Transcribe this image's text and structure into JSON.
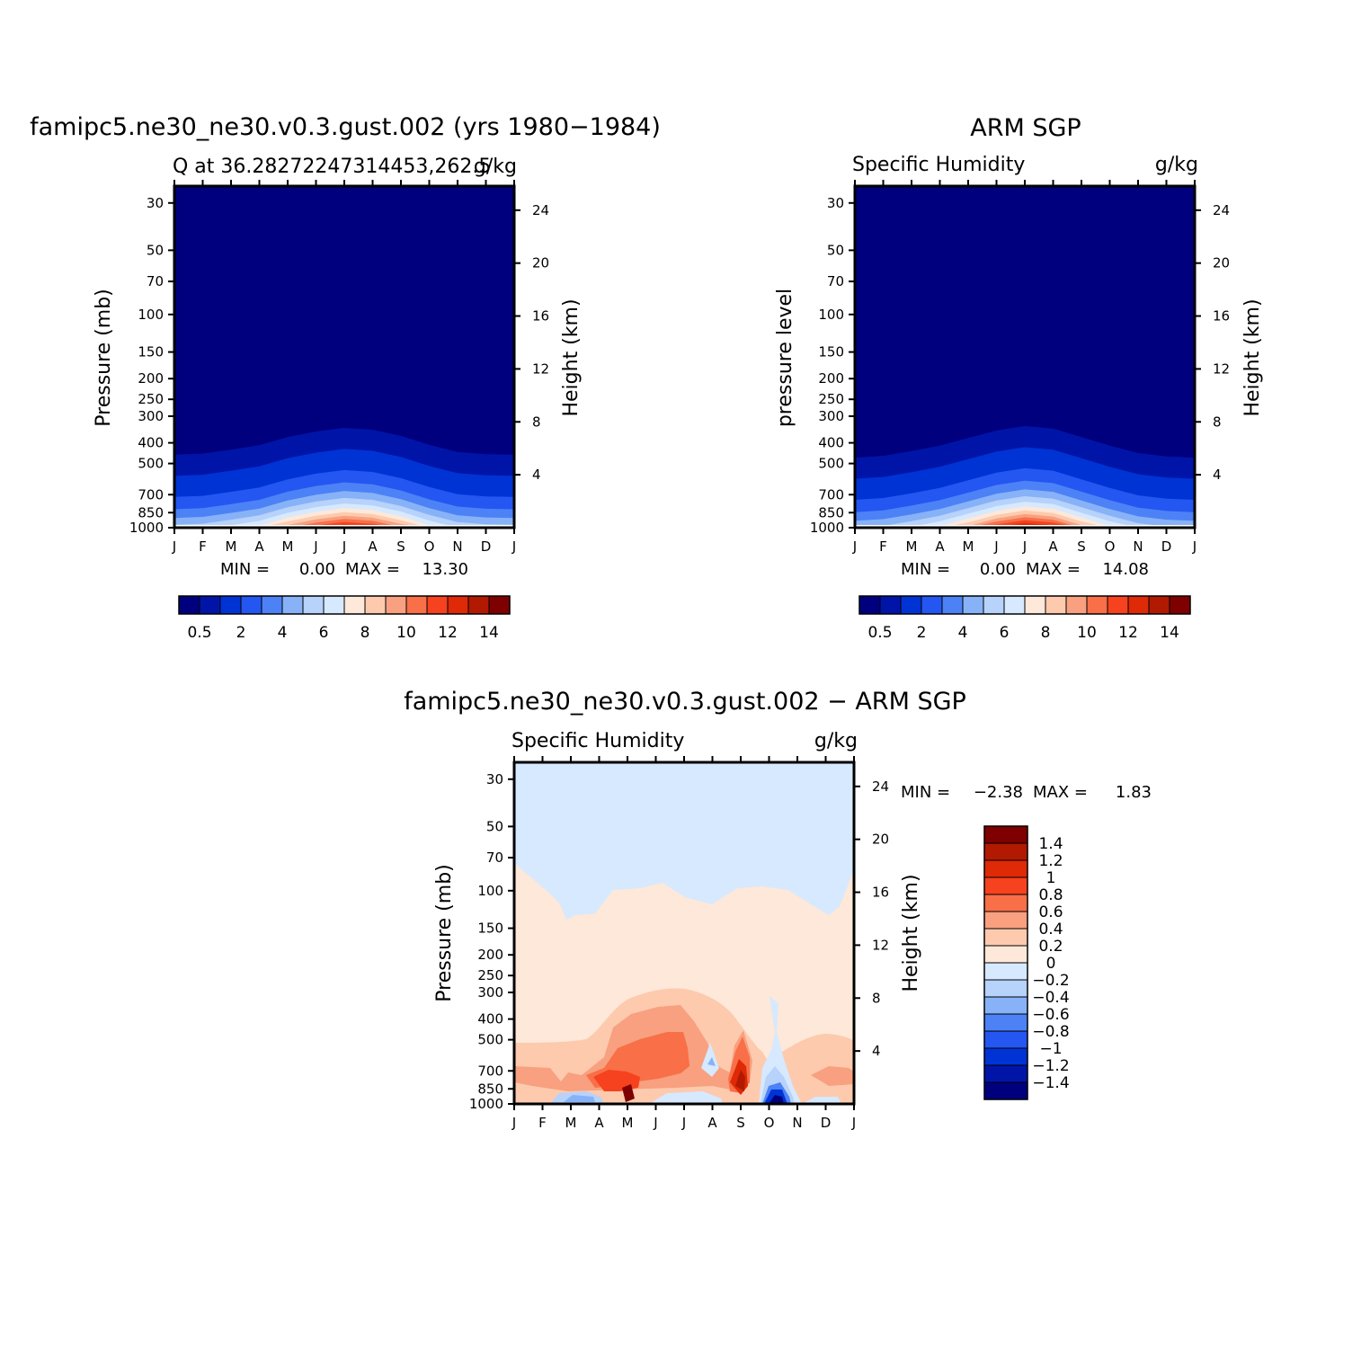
{
  "colors": {
    "levels": [
      "#00007f",
      "#0015a8",
      "#0033d4",
      "#2456f2",
      "#4c82f6",
      "#88b2f7",
      "#b7d2fb",
      "#d6e9fe",
      "#fde8d9",
      "#fdcaae",
      "#f8a07f",
      "#f86f48",
      "#f6421e",
      "#de2a06",
      "#b11a00",
      "#7f0000"
    ],
    "diff": [
      "#00007f",
      "#0015a8",
      "#0033d4",
      "#2456f2",
      "#4c82f6",
      "#88b2f7",
      "#b7d2fb",
      "#d6e9fe",
      "#fde8d9",
      "#fdcaae",
      "#f8a07f",
      "#f86f48",
      "#f6421e",
      "#de2a06",
      "#b11a00",
      "#7f0000"
    ]
  },
  "chart_data": [
    {
      "type": "heatmap",
      "title": "famipc5.ne30_ne30.v0.3.gust.002 (yrs 1980−1984)",
      "subtitle_left": "Q at 36.28272247314453,262.5",
      "subtitle_right": "g/kg",
      "ylabel": "Pressure (mb)",
      "ylabel_right": "Height (km)",
      "x_ticks": [
        "J",
        "F",
        "M",
        "A",
        "M",
        "J",
        "J",
        "A",
        "S",
        "O",
        "N",
        "D",
        "J"
      ],
      "y_ticks": [
        "30",
        "50",
        "70",
        "100",
        "150",
        "200",
        "250",
        "300",
        "400",
        "500",
        "700",
        "850",
        "1000"
      ],
      "y_ticks_right": [
        "24",
        "20",
        "16",
        "12",
        "8",
        "4"
      ],
      "min_label": "MIN =",
      "min_value": "0.00",
      "max_label": "MAX =",
      "max_value": "13.30",
      "colorbar_ticks": [
        "0.5",
        "2",
        "4",
        "6",
        "8",
        "10",
        "12",
        "14"
      ],
      "levels": [
        0.5,
        1,
        2,
        3,
        4,
        5,
        6,
        7,
        8,
        9,
        10,
        11,
        12,
        13,
        14
      ],
      "profile_max_by_month": [
        5.5,
        5.7,
        6.5,
        7.5,
        9.8,
        11.8,
        13.3,
        12.5,
        10.2,
        7.6,
        6.0,
        5.6,
        5.5
      ]
    },
    {
      "type": "heatmap",
      "title": "ARM SGP",
      "subtitle_left": "Specific Humidity",
      "subtitle_right": "g/kg",
      "ylabel": "pressure level",
      "ylabel_right": "Height (km)",
      "x_ticks": [
        "J",
        "F",
        "M",
        "A",
        "M",
        "J",
        "J",
        "A",
        "S",
        "O",
        "N",
        "D",
        "J"
      ],
      "y_ticks": [
        "30",
        "50",
        "70",
        "100",
        "150",
        "200",
        "250",
        "300",
        "400",
        "500",
        "700",
        "850",
        "1000"
      ],
      "y_ticks_right": [
        "24",
        "20",
        "16",
        "12",
        "8",
        "4"
      ],
      "min_label": "MIN =",
      "min_value": "0.00",
      "max_label": "MAX =",
      "max_value": "14.08",
      "colorbar_ticks": [
        "0.5",
        "2",
        "4",
        "6",
        "8",
        "10",
        "12",
        "14"
      ],
      "levels": [
        0.5,
        1,
        2,
        3,
        4,
        5,
        6,
        7,
        8,
        9,
        10,
        11,
        12,
        13,
        14
      ],
      "profile_max_by_month": [
        5.0,
        5.3,
        6.2,
        7.4,
        9.5,
        12.2,
        14.08,
        13.0,
        9.8,
        7.4,
        5.8,
        5.2,
        5.0
      ]
    },
    {
      "type": "heatmap",
      "title": "famipc5.ne30_ne30.v0.3.gust.002 − ARM SGP",
      "subtitle_left": "Specific Humidity",
      "subtitle_right": "g/kg",
      "ylabel": "Pressure (mb)",
      "ylabel_right": "Height (km)",
      "x_ticks": [
        "J",
        "F",
        "M",
        "A",
        "M",
        "J",
        "J",
        "A",
        "S",
        "O",
        "N",
        "D",
        "J"
      ],
      "y_ticks": [
        "30",
        "50",
        "70",
        "100",
        "150",
        "200",
        "250",
        "300",
        "400",
        "500",
        "700",
        "850",
        "1000"
      ],
      "y_ticks_right": [
        "24",
        "20",
        "16",
        "12",
        "8",
        "4"
      ],
      "min_label": "MIN =",
      "min_value": "−2.38",
      "max_label": "MAX =",
      "max_value": "1.83",
      "colorbar_ticks": [
        "1.4",
        "1.2",
        "1",
        "0.8",
        "0.6",
        "0.4",
        "0.2",
        "0",
        "−0.2",
        "−0.4",
        "−0.6",
        "−0.8",
        "−1",
        "−1.2",
        "−1.4"
      ],
      "levels": [
        -1.4,
        -1.2,
        -1,
        -0.8,
        -0.6,
        -0.4,
        -0.2,
        0,
        0.2,
        0.4,
        0.6,
        0.8,
        1,
        1.2,
        1.4
      ]
    }
  ]
}
